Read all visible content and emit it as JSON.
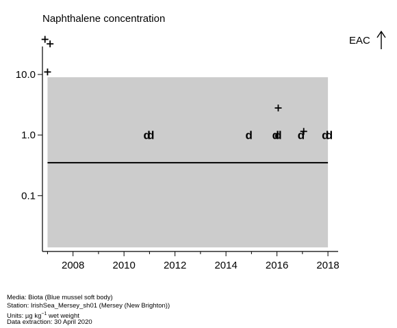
{
  "chart_data": {
    "type": "scatter",
    "title": "Naphthalene concentration",
    "y_scale": "log",
    "xlim": [
      2006.8,
      2018.4
    ],
    "ylim": [
      0.012,
      60
    ],
    "x_ticks": [
      2008,
      2010,
      2012,
      2014,
      2016,
      2018
    ],
    "x_tick_labels": [
      "2008",
      "2010",
      "2012",
      "2014",
      "2016",
      "2018"
    ],
    "y_ticks": [
      10.0,
      1.0,
      0.1
    ],
    "y_tick_labels": [
      "10.0",
      "1.0",
      "0.1"
    ],
    "background_band": {
      "x": [
        2007.0,
        2018.0
      ],
      "y": [
        0.014,
        9.0
      ],
      "color": "#cccccc"
    },
    "reference_line": {
      "y": 0.35,
      "x": [
        2007.0,
        2018.0
      ],
      "color": "#000000"
    },
    "eac_label": "EAC",
    "points_plus": [
      {
        "x": 2006.9,
        "y": 38
      },
      {
        "x": 2007.1,
        "y": 32
      },
      {
        "x": 2007.0,
        "y": 11
      },
      {
        "x": 2016.05,
        "y": 2.8
      },
      {
        "x": 2017.05,
        "y": 1.15
      }
    ],
    "points_d": [
      {
        "x": 2010.9,
        "y": 1.0,
        "label": "d"
      },
      {
        "x": 2011.05,
        "y": 1.0,
        "label": "d"
      },
      {
        "x": 2014.9,
        "y": 1.0,
        "label": "d"
      },
      {
        "x": 2015.95,
        "y": 1.0,
        "label": "d"
      },
      {
        "x": 2016.05,
        "y": 1.0,
        "label": "d"
      },
      {
        "x": 2016.95,
        "y": 1.0,
        "label": "d"
      },
      {
        "x": 2017.9,
        "y": 1.0,
        "label": "d"
      },
      {
        "x": 2018.05,
        "y": 1.0,
        "label": "d"
      }
    ]
  },
  "footer": {
    "media": "Media: Biota (Blue mussel soft body)",
    "station": "Station: IrishSea_Mersey_sh01 (Mersey (New Brighton))",
    "units_prefix": "Units:  µg kg",
    "units_exp": "−1",
    "units_suffix": " wet weight",
    "extraction": "Data extraction: 30 April 2020"
  }
}
